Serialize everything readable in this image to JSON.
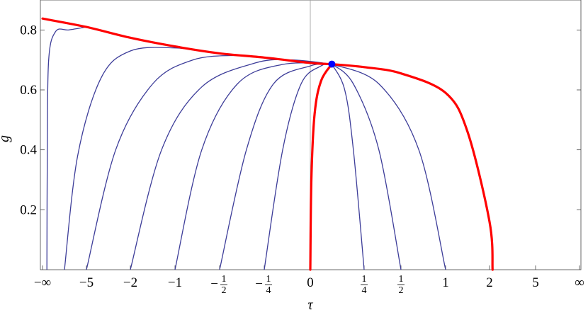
{
  "chart_data": {
    "type": "line",
    "title": "",
    "xlabel": "τ",
    "ylabel": "g",
    "x_axis_scale": "compactified (non-linear, ±∞ at ends)",
    "xlim": [
      "-∞",
      "∞"
    ],
    "ylim": [
      0,
      0.9
    ],
    "grid": false,
    "x_ticks": [
      {
        "value": "-inf",
        "label": "−∞"
      },
      {
        "value": -5,
        "label": "−5"
      },
      {
        "value": -2,
        "label": "−2"
      },
      {
        "value": -1,
        "label": "−1"
      },
      {
        "value": -0.5,
        "label": "−½",
        "sign": "−",
        "num": "1",
        "den": "2"
      },
      {
        "value": -0.25,
        "label": "−¼",
        "sign": "−",
        "num": "1",
        "den": "4"
      },
      {
        "value": 0,
        "label": "0"
      },
      {
        "value": 0.25,
        "label": "¼",
        "sign": "",
        "num": "1",
        "den": "4"
      },
      {
        "value": 0.5,
        "label": "½",
        "sign": "",
        "num": "1",
        "den": "2"
      },
      {
        "value": 1,
        "label": "1"
      },
      {
        "value": 2,
        "label": "2"
      },
      {
        "value": 5,
        "label": "5"
      },
      {
        "value": "inf",
        "label": "∞"
      }
    ],
    "y_ticks": [
      {
        "value": 0.2,
        "label": "0.2"
      },
      {
        "value": 0.4,
        "label": "0.4"
      },
      {
        "value": 0.6,
        "label": "0.6"
      },
      {
        "value": 0.8,
        "label": "0.8"
      }
    ],
    "fixed_point": {
      "tau": 0.1,
      "g": 0.686,
      "color": "#0000ff"
    },
    "separatrices": {
      "color": "#ff0000",
      "curves": [
        {
          "points": [
            [
              -10,
              0.838
            ],
            [
              -5,
              0.81
            ],
            [
              -2,
              0.774
            ],
            [
              -1,
              0.745
            ],
            [
              -0.5,
              0.722
            ],
            [
              -0.25,
              0.708
            ],
            [
              0,
              0.69
            ],
            [
              0.1,
              0.686
            ]
          ]
        },
        {
          "points": [
            [
              0.1,
              0.686
            ],
            [
              0.25,
              0.676
            ],
            [
              0.5,
              0.655
            ],
            [
              1,
              0.59
            ],
            [
              1.5,
              0.46
            ],
            [
              2,
              0.16
            ],
            [
              2.2,
              0.0
            ]
          ]
        },
        {
          "points": [
            [
              0,
              0.0
            ],
            [
              0.005,
              0.3
            ],
            [
              0.02,
              0.52
            ],
            [
              0.05,
              0.63
            ],
            [
              0.1,
              0.686
            ]
          ]
        }
      ]
    },
    "trajectories": {
      "color": "#3d3d99",
      "curves": [
        {
          "points": [
            [
              -9.5,
              0.0
            ],
            [
              -9.45,
              0.4
            ],
            [
              -9.3,
              0.7
            ],
            [
              -8.5,
              0.795
            ],
            [
              -7,
              0.8
            ],
            [
              -5,
              0.81
            ]
          ]
        },
        {
          "points": [
            [
              -7.5,
              0.0
            ],
            [
              -6,
              0.38
            ],
            [
              -4,
              0.64
            ],
            [
              -2,
              0.73
            ],
            [
              -1,
              0.74
            ],
            [
              -0.5,
              0.722
            ]
          ]
        },
        {
          "points": [
            [
              -5,
              0.0
            ],
            [
              -3,
              0.4
            ],
            [
              -1.5,
              0.62
            ],
            [
              -0.8,
              0.7
            ],
            [
              -0.4,
              0.715
            ],
            [
              -0.25,
              0.708
            ]
          ]
        },
        {
          "points": [
            [
              -2,
              0.0
            ],
            [
              -1.3,
              0.4
            ],
            [
              -0.7,
              0.61
            ],
            [
              -0.3,
              0.69
            ],
            [
              -0.1,
              0.7
            ],
            [
              0.1,
              0.686
            ]
          ]
        },
        {
          "points": [
            [
              -1,
              0.0
            ],
            [
              -0.7,
              0.4
            ],
            [
              -0.4,
              0.62
            ],
            [
              -0.15,
              0.685
            ],
            [
              0.1,
              0.686
            ]
          ]
        },
        {
          "points": [
            [
              -0.5,
              0.0
            ],
            [
              -0.35,
              0.4
            ],
            [
              -0.2,
              0.62
            ],
            [
              0,
              0.68
            ],
            [
              0.1,
              0.686
            ]
          ]
        },
        {
          "points": [
            [
              -0.25,
              0.0
            ],
            [
              -0.15,
              0.4
            ],
            [
              -0.05,
              0.62
            ],
            [
              0.05,
              0.68
            ],
            [
              0.1,
              0.686
            ]
          ]
        },
        {
          "points": [
            [
              0.25,
              0.0
            ],
            [
              0.2,
              0.4
            ],
            [
              0.16,
              0.6
            ],
            [
              0.1,
              0.686
            ]
          ]
        },
        {
          "points": [
            [
              0.5,
              0.0
            ],
            [
              0.35,
              0.4
            ],
            [
              0.2,
              0.62
            ],
            [
              0.1,
              0.686
            ]
          ]
        },
        {
          "points": [
            [
              1,
              0.0
            ],
            [
              0.7,
              0.4
            ],
            [
              0.35,
              0.62
            ],
            [
              0.1,
              0.686
            ]
          ]
        }
      ]
    }
  }
}
